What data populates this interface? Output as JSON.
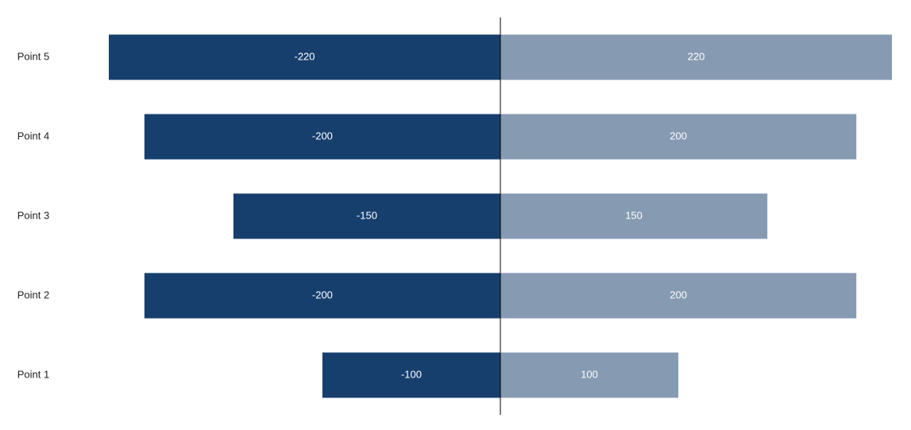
{
  "chart_data": {
    "type": "bar",
    "orientation": "horizontal",
    "categories": [
      "Point 1",
      "Point 2",
      "Point 3",
      "Point 4",
      "Point 5"
    ],
    "series": [
      {
        "color": "#173f6e",
        "values": [
          -100,
          -200,
          -150,
          -200,
          -220
        ]
      },
      {
        "color": "#869ab2",
        "values": [
          100,
          200,
          150,
          200,
          220
        ]
      }
    ]
  }
}
